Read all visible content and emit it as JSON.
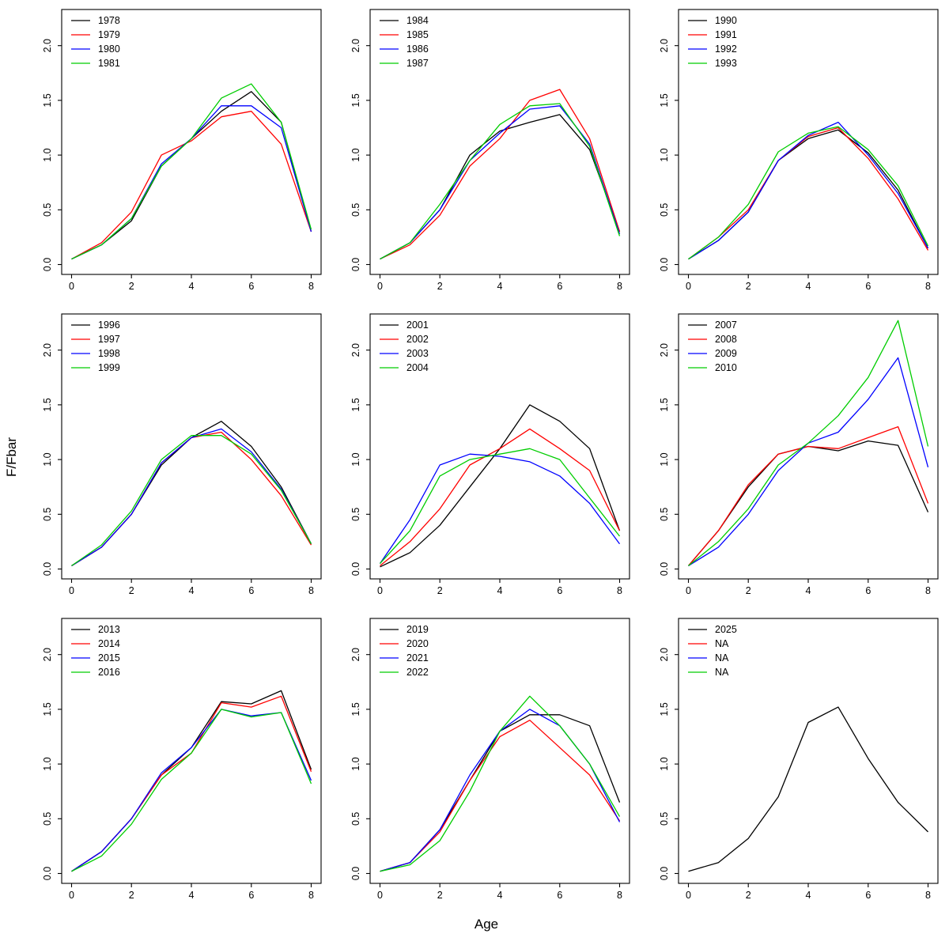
{
  "figure": {
    "ylabel": "F/Fbar",
    "xlabel": "Age",
    "background": "#ffffff",
    "x_tick_labels": [
      "0",
      "2",
      "4",
      "6",
      "8"
    ],
    "x_tick_values": [
      0,
      2,
      4,
      6,
      8
    ],
    "y_tick_labels": [
      "0.0",
      "0.5",
      "1.0",
      "1.5",
      "2.0"
    ],
    "y_tick_values": [
      0,
      0.5,
      1,
      1.5,
      2
    ],
    "xlim": [
      -0.33,
      8.33
    ],
    "ylim": [
      -0.09,
      2.33
    ],
    "grid": "off",
    "legend_position": "top-left",
    "line_colors": [
      "#000000",
      "#FF0000",
      "#0000FF",
      "#00CD00"
    ]
  },
  "chart_data": [
    {
      "type": "line",
      "x": [
        0,
        1,
        2,
        3,
        4,
        5,
        6,
        7,
        8
      ],
      "series": [
        {
          "name": "1978",
          "color": "#000000",
          "values": [
            0.05,
            0.18,
            0.4,
            0.9,
            1.15,
            1.4,
            1.58,
            1.3,
            0.3
          ]
        },
        {
          "name": "1979",
          "color": "#FF0000",
          "values": [
            0.05,
            0.2,
            0.48,
            1.0,
            1.13,
            1.35,
            1.4,
            1.1,
            0.3
          ]
        },
        {
          "name": "1980",
          "color": "#0000FF",
          "values": [
            0.05,
            0.18,
            0.42,
            0.92,
            1.15,
            1.45,
            1.45,
            1.25,
            0.3
          ]
        },
        {
          "name": "1981",
          "color": "#00CD00",
          "values": [
            0.05,
            0.18,
            0.42,
            0.9,
            1.15,
            1.52,
            1.65,
            1.3,
            0.32
          ]
        }
      ]
    },
    {
      "type": "line",
      "x": [
        0,
        1,
        2,
        3,
        4,
        5,
        6,
        7,
        8
      ],
      "series": [
        {
          "name": "1984",
          "color": "#000000",
          "values": [
            0.05,
            0.2,
            0.5,
            1.0,
            1.22,
            1.3,
            1.37,
            1.05,
            0.3
          ]
        },
        {
          "name": "1985",
          "color": "#FF0000",
          "values": [
            0.05,
            0.18,
            0.45,
            0.9,
            1.15,
            1.5,
            1.6,
            1.15,
            0.3
          ]
        },
        {
          "name": "1986",
          "color": "#0000FF",
          "values": [
            0.05,
            0.2,
            0.5,
            0.95,
            1.2,
            1.42,
            1.45,
            1.1,
            0.28
          ]
        },
        {
          "name": "1987",
          "color": "#00CD00",
          "values": [
            0.05,
            0.2,
            0.55,
            0.95,
            1.28,
            1.45,
            1.47,
            1.08,
            0.26
          ]
        }
      ]
    },
    {
      "type": "line",
      "x": [
        0,
        1,
        2,
        3,
        4,
        5,
        6,
        7,
        8
      ],
      "series": [
        {
          "name": "1990",
          "color": "#000000",
          "values": [
            0.05,
            0.22,
            0.48,
            0.95,
            1.15,
            1.23,
            1.02,
            0.68,
            0.15
          ]
        },
        {
          "name": "1991",
          "color": "#FF0000",
          "values": [
            0.05,
            0.25,
            0.5,
            0.95,
            1.17,
            1.25,
            0.97,
            0.6,
            0.13
          ]
        },
        {
          "name": "1992",
          "color": "#0000FF",
          "values": [
            0.05,
            0.22,
            0.48,
            0.95,
            1.18,
            1.3,
            1.0,
            0.65,
            0.15
          ]
        },
        {
          "name": "1993",
          "color": "#00CD00",
          "values": [
            0.05,
            0.25,
            0.55,
            1.03,
            1.2,
            1.26,
            1.05,
            0.72,
            0.17
          ]
        }
      ]
    },
    {
      "type": "line",
      "x": [
        0,
        1,
        2,
        3,
        4,
        5,
        6,
        7,
        8
      ],
      "series": [
        {
          "name": "1996",
          "color": "#000000",
          "values": [
            0.03,
            0.2,
            0.5,
            0.95,
            1.2,
            1.35,
            1.12,
            0.75,
            0.23
          ]
        },
        {
          "name": "1997",
          "color": "#FF0000",
          "values": [
            0.03,
            0.2,
            0.5,
            0.97,
            1.2,
            1.25,
            1.0,
            0.67,
            0.22
          ]
        },
        {
          "name": "1998",
          "color": "#0000FF",
          "values": [
            0.03,
            0.2,
            0.5,
            0.97,
            1.2,
            1.28,
            1.07,
            0.73,
            0.23
          ]
        },
        {
          "name": "1999",
          "color": "#00CD00",
          "values": [
            0.03,
            0.22,
            0.53,
            1.0,
            1.22,
            1.22,
            1.05,
            0.72,
            0.23
          ]
        }
      ]
    },
    {
      "type": "line",
      "x": [
        0,
        1,
        2,
        3,
        4,
        5,
        6,
        7,
        8
      ],
      "series": [
        {
          "name": "2001",
          "color": "#000000",
          "values": [
            0.02,
            0.15,
            0.4,
            0.75,
            1.1,
            1.5,
            1.35,
            1.1,
            0.35
          ]
        },
        {
          "name": "2002",
          "color": "#FF0000",
          "values": [
            0.03,
            0.25,
            0.55,
            0.95,
            1.1,
            1.28,
            1.1,
            0.9,
            0.35
          ]
        },
        {
          "name": "2003",
          "color": "#0000FF",
          "values": [
            0.05,
            0.45,
            0.95,
            1.05,
            1.03,
            0.98,
            0.85,
            0.6,
            0.23
          ]
        },
        {
          "name": "2004",
          "color": "#00CD00",
          "values": [
            0.05,
            0.35,
            0.85,
            1.0,
            1.05,
            1.1,
            1.0,
            0.65,
            0.3
          ]
        }
      ]
    },
    {
      "type": "line",
      "x": [
        0,
        1,
        2,
        3,
        4,
        5,
        6,
        7,
        8
      ],
      "series": [
        {
          "name": "2007",
          "color": "#000000",
          "values": [
            0.03,
            0.35,
            0.75,
            1.05,
            1.12,
            1.08,
            1.17,
            1.13,
            0.52
          ]
        },
        {
          "name": "2008",
          "color": "#FF0000",
          "values": [
            0.03,
            0.35,
            0.77,
            1.05,
            1.12,
            1.1,
            1.2,
            1.3,
            0.6
          ]
        },
        {
          "name": "2009",
          "color": "#0000FF",
          "values": [
            0.03,
            0.2,
            0.5,
            0.9,
            1.15,
            1.25,
            1.55,
            1.93,
            0.93
          ]
        },
        {
          "name": "2010",
          "color": "#00CD00",
          "values": [
            0.03,
            0.25,
            0.55,
            0.95,
            1.15,
            1.4,
            1.75,
            2.27,
            1.12
          ]
        }
      ]
    },
    {
      "type": "line",
      "x": [
        0,
        1,
        2,
        3,
        4,
        5,
        6,
        7,
        8
      ],
      "series": [
        {
          "name": "2013",
          "color": "#000000",
          "values": [
            0.02,
            0.2,
            0.5,
            0.9,
            1.15,
            1.57,
            1.55,
            1.67,
            0.95
          ]
        },
        {
          "name": "2014",
          "color": "#FF0000",
          "values": [
            0.02,
            0.2,
            0.5,
            0.9,
            1.1,
            1.56,
            1.52,
            1.62,
            0.93
          ]
        },
        {
          "name": "2015",
          "color": "#0000FF",
          "values": [
            0.02,
            0.2,
            0.5,
            0.92,
            1.15,
            1.5,
            1.44,
            1.47,
            0.85
          ]
        },
        {
          "name": "2016",
          "color": "#00CD00",
          "values": [
            0.02,
            0.16,
            0.45,
            0.86,
            1.1,
            1.5,
            1.43,
            1.47,
            0.82
          ]
        }
      ]
    },
    {
      "type": "line",
      "x": [
        0,
        1,
        2,
        3,
        4,
        5,
        6,
        7,
        8
      ],
      "series": [
        {
          "name": "2019",
          "color": "#000000",
          "values": [
            0.02,
            0.1,
            0.4,
            0.85,
            1.3,
            1.45,
            1.45,
            1.35,
            0.65
          ]
        },
        {
          "name": "2020",
          "color": "#FF0000",
          "values": [
            0.02,
            0.1,
            0.38,
            0.85,
            1.25,
            1.4,
            1.15,
            0.9,
            0.48
          ]
        },
        {
          "name": "2021",
          "color": "#0000FF",
          "values": [
            0.02,
            0.1,
            0.4,
            0.9,
            1.3,
            1.5,
            1.35,
            1.0,
            0.47
          ]
        },
        {
          "name": "2022",
          "color": "#00CD00",
          "values": [
            0.02,
            0.08,
            0.3,
            0.75,
            1.3,
            1.62,
            1.35,
            1.0,
            0.52
          ]
        }
      ]
    },
    {
      "type": "line",
      "x": [
        0,
        1,
        2,
        3,
        4,
        5,
        6,
        7,
        8
      ],
      "series": [
        {
          "name": "2025",
          "color": "#000000",
          "values": [
            0.02,
            0.1,
            0.32,
            0.7,
            1.38,
            1.52,
            1.05,
            0.65,
            0.38
          ]
        },
        {
          "name": "NA",
          "color": "#FF0000",
          "values": null
        },
        {
          "name": "NA",
          "color": "#0000FF",
          "values": null
        },
        {
          "name": "NA",
          "color": "#00CD00",
          "values": null
        }
      ]
    }
  ]
}
